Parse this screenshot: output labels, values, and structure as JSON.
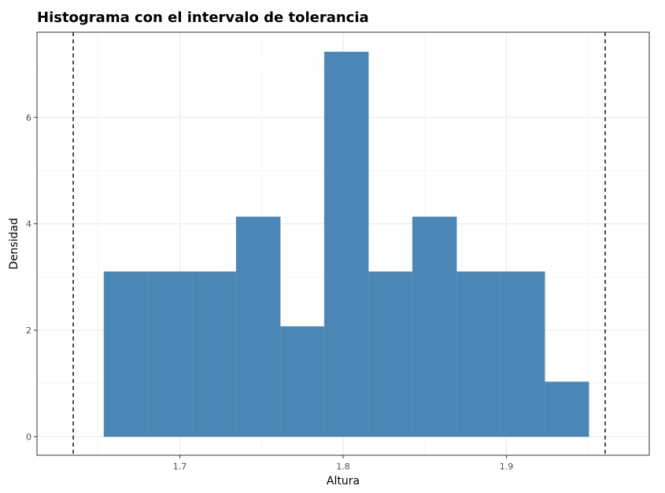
{
  "chart_data": {
    "type": "bar",
    "title": "Histograma con el intervalo de tolerancia",
    "xlabel": "Altura",
    "ylabel": "Densidad",
    "xlim": [
      1.6125,
      1.9875
    ],
    "ylim": [
      -0.35,
      7.6
    ],
    "xticks": [
      1.7,
      1.8,
      1.9
    ],
    "xtick_labels": [
      "1.7",
      "1.8",
      "1.9"
    ],
    "yticks": [
      0,
      2,
      4,
      6
    ],
    "ytick_labels": [
      "0",
      "2",
      "4",
      "6"
    ],
    "bin_edges": [
      1.6535,
      1.6805,
      1.7075,
      1.7345,
      1.7615,
      1.7885,
      1.8155,
      1.8425,
      1.8695,
      1.8965,
      1.9235,
      1.9505
    ],
    "values": [
      3.1,
      3.1,
      3.1,
      4.13,
      2.07,
      7.23,
      3.1,
      4.13,
      3.1,
      3.1,
      1.03
    ],
    "tolerance_interval": [
      1.6347,
      1.9605
    ],
    "grid": true,
    "colors": {
      "bar_fill": "#4b86b4",
      "bar_outline": "#5a93bf",
      "tolerance_line": "#000000",
      "grid_major": "#ebebeb",
      "grid_minor": "#f5f5f5",
      "panel_border": "#333333"
    }
  }
}
